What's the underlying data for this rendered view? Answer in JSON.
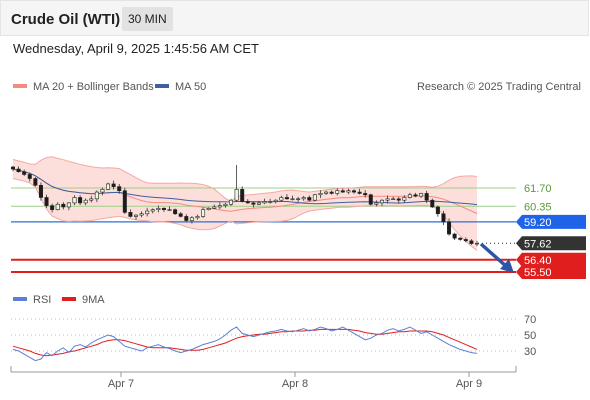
{
  "header": {
    "title": "Crude Oil (WTI)",
    "timeframe": "30 MIN"
  },
  "datetime": "Wednesday, April 9, 2025 1:45:56 AM CET",
  "legend": {
    "items": [
      {
        "label": "MA 20 + Bollinger Bands",
        "color": "#f28b82"
      },
      {
        "label": "MA 50",
        "color": "#3f5fa0"
      }
    ],
    "copyright": "Research © 2025 Trading Central"
  },
  "rsi_legend": {
    "items": [
      {
        "label": "RSI",
        "color": "#5b7fd6"
      },
      {
        "label": "9MA",
        "color": "#e01e1e"
      }
    ]
  },
  "chart_data": [
    {
      "type": "candlestick",
      "x_labels": [
        "Apr 7",
        "Apr 8",
        "Apr 9"
      ],
      "ylim": [
        54.6,
        64.3
      ],
      "close": [
        63.1,
        62.9,
        62.7,
        62.4,
        61.9,
        61.0,
        60.4,
        60.1,
        60.5,
        60.3,
        60.6,
        61.0,
        60.6,
        60.8,
        60.9,
        61.4,
        61.6,
        62.0,
        61.8,
        61.5,
        59.9,
        59.6,
        59.7,
        59.8,
        60.0,
        60.1,
        60.2,
        60.1,
        60.1,
        59.8,
        59.6,
        59.3,
        59.5,
        59.6,
        60.1,
        60.2,
        60.3,
        60.4,
        60.5,
        60.8,
        61.6,
        60.7,
        60.6,
        60.5,
        60.6,
        60.7,
        60.7,
        60.8,
        61.0,
        60.9,
        60.9,
        60.9,
        61.0,
        60.8,
        61.2,
        61.3,
        61.4,
        61.3,
        61.5,
        61.4,
        61.5,
        61.4,
        61.3,
        61.2,
        60.5,
        60.6,
        60.8,
        60.9,
        60.9,
        60.8,
        61.0,
        61.2,
        61.1,
        61.3,
        60.8,
        60.3,
        59.8,
        59.2,
        58.3,
        58.0,
        57.9,
        57.8,
        57.6,
        57.62
      ],
      "price_levels": [
        {
          "value": "61.70",
          "kind": "resistance"
        },
        {
          "value": "60.35",
          "kind": "resistance"
        },
        {
          "value": "59.20",
          "kind": "pivot"
        },
        {
          "value": "57.62",
          "kind": "last"
        },
        {
          "value": "56.40",
          "kind": "support"
        },
        {
          "value": "55.50",
          "kind": "support"
        }
      ],
      "series": [
        {
          "name": "MA 20 + Bollinger Bands"
        },
        {
          "name": "MA 50"
        }
      ]
    },
    {
      "type": "line",
      "name": "RSI",
      "y_ticks": [
        "70",
        "50",
        "30"
      ],
      "ylim": [
        10,
        80
      ],
      "rsi": [
        32,
        30,
        26,
        22,
        18,
        20,
        28,
        24,
        30,
        34,
        28,
        36,
        38,
        35,
        40,
        44,
        47,
        50,
        48,
        42,
        36,
        34,
        32,
        30,
        34,
        36,
        38,
        35,
        33,
        30,
        28,
        30,
        32,
        35,
        38,
        40,
        42,
        45,
        50,
        56,
        60,
        52,
        50,
        48,
        50,
        52,
        54,
        55,
        57,
        55,
        54,
        56,
        58,
        55,
        57,
        60,
        58,
        55,
        57,
        60,
        56,
        52,
        48,
        44,
        46,
        50,
        52,
        56,
        58,
        55,
        57,
        60,
        56,
        52,
        54,
        50,
        46,
        42,
        38,
        35,
        32,
        30,
        28,
        27
      ],
      "ma9": [
        36,
        34,
        32,
        30,
        27,
        25,
        24,
        25,
        26,
        27,
        29,
        30,
        32,
        34,
        36,
        38,
        41,
        43,
        44,
        44,
        43,
        41,
        39,
        37,
        35,
        34,
        34,
        34,
        34,
        33,
        32,
        31,
        31,
        31,
        32,
        34,
        36,
        38,
        40,
        43,
        46,
        48,
        49,
        50,
        51,
        51,
        52,
        53,
        54,
        54,
        55,
        55,
        55,
        56,
        56,
        57,
        57,
        57,
        57,
        57,
        57,
        56,
        55,
        53,
        52,
        51,
        51,
        52,
        53,
        54,
        54,
        55,
        55,
        55,
        55,
        54,
        52,
        50,
        47,
        44,
        41,
        38,
        35,
        32
      ]
    }
  ]
}
